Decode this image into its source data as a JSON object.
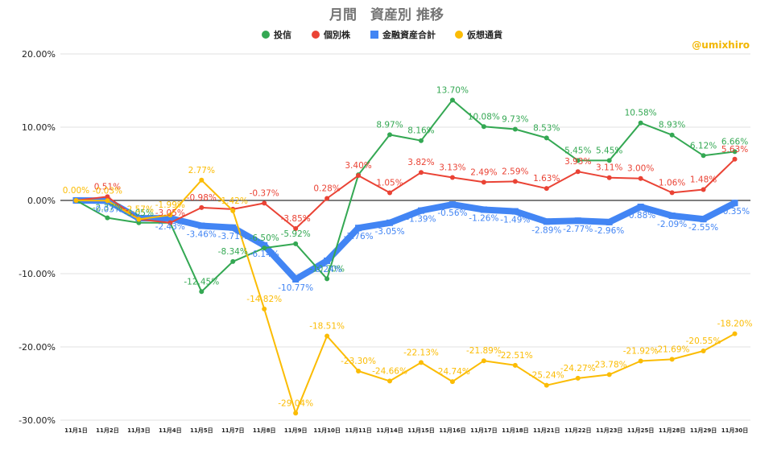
{
  "chart_data": {
    "type": "line",
    "title": "月間　資産別 推移",
    "watermark": "@umixhiro",
    "ylim": [
      -30,
      20
    ],
    "ytick_values": [
      20,
      10,
      0,
      -10,
      -20,
      -30
    ],
    "ytick_labels": [
      "20.00%",
      "10.00%",
      "0.00%",
      "-10.00%",
      "-20.00%",
      "-30.00%"
    ],
    "categories": [
      "11月1日",
      "11月2日",
      "11月3日",
      "11月4日",
      "11月5日",
      "11月7日",
      "11月8日",
      "11月9日",
      "11月10日",
      "11月11日",
      "11月14日",
      "11月15日",
      "11月16日",
      "11月17日",
      "11月18日",
      "11月21日",
      "11月22日",
      "11月23日",
      "11月25日",
      "11月28日",
      "11月29日",
      "11月30日"
    ],
    "grid": true,
    "legend_position": "top",
    "series": [
      {
        "name": "投信",
        "color": "#34a853",
        "values": [
          0.0,
          -2.37,
          -3.05,
          -3.05,
          -12.45,
          -8.34,
          -6.5,
          -5.92,
          -10.7,
          3.5,
          8.97,
          8.16,
          13.7,
          10.08,
          9.73,
          8.53,
          5.45,
          5.45,
          10.58,
          8.93,
          6.12,
          6.66
        ],
        "labels": [
          "",
          "-2.37%",
          "-3.05%",
          "",
          "-12.45%",
          "-8.34%",
          "-6.50%",
          "-5.92%",
          "-10.70%",
          "",
          "8.97%",
          "8.16%",
          "13.70%",
          "10.08%",
          "9.73%",
          "8.53%",
          "5.45%",
          "5.45%",
          "10.58%",
          "8.93%",
          "6.12%",
          "6.66%"
        ]
      },
      {
        "name": "個別株",
        "color": "#ea4335",
        "values": [
          0.0,
          0.51,
          -2.57,
          -3.05,
          -0.98,
          -1.2,
          -0.37,
          -3.85,
          0.28,
          3.4,
          1.05,
          3.82,
          3.13,
          2.49,
          2.59,
          1.63,
          3.93,
          3.11,
          3.0,
          1.06,
          1.48,
          5.63
        ],
        "labels": [
          "",
          "0.51%",
          "",
          "-3.05%",
          "-0.98%",
          "",
          "-0.37%",
          "-3.85%",
          "0.28%",
          "3.40%",
          "1.05%",
          "3.82%",
          "3.13%",
          "2.49%",
          "2.59%",
          "1.63%",
          "3.93%",
          "3.11%",
          "3.00%",
          "1.06%",
          "1.48%",
          "5.63%"
        ]
      },
      {
        "name": "金融資産合計",
        "color": "#4285f4",
        "values": [
          0.0,
          -0.03,
          -2.43,
          -2.43,
          -3.46,
          -3.71,
          -6.14,
          -10.77,
          -8.24,
          -3.76,
          -3.05,
          -1.39,
          -0.56,
          -1.26,
          -1.49,
          -2.89,
          -2.77,
          -2.96,
          -0.88,
          -2.09,
          -2.55,
          -0.35
        ],
        "labels": [
          "",
          "-0.03%",
          "",
          "-2.43%",
          "-3.46%",
          "-3.71%",
          "-6.14%",
          "-10.77%",
          "-8.24%",
          "-3.76%",
          "-3.05%",
          "-1.39%",
          "-0.56%",
          "-1.26%",
          "-1.49%",
          "-2.89%",
          "-2.77%",
          "-2.96%",
          "-0.88%",
          "-2.09%",
          "-2.55%",
          "-0.35%"
        ]
      },
      {
        "name": "仮想通貨",
        "color": "#fbbc04",
        "values": [
          0.0,
          -0.03,
          -2.57,
          -1.99,
          2.77,
          -1.42,
          -14.82,
          -29.04,
          -18.51,
          -23.3,
          -24.66,
          -22.13,
          -24.74,
          -21.89,
          -22.51,
          -25.24,
          -24.27,
          -23.78,
          -21.92,
          -21.69,
          -20.55,
          -18.2
        ],
        "labels": [
          "0.00%",
          "-0.03%",
          "-2.57%",
          "-1.99%",
          "2.77%",
          "-1.42%",
          "-14.82%",
          "-29.04%",
          "-18.51%",
          "-23.30%",
          "-24.66%",
          "-22.13%",
          "-24.74%",
          "-21.89%",
          "-22.51%",
          "-25.24%",
          "-24.27%",
          "-23.78%",
          "-21.92%",
          "-21.69%",
          "-20.55%",
          "-18.20%"
        ]
      }
    ]
  }
}
